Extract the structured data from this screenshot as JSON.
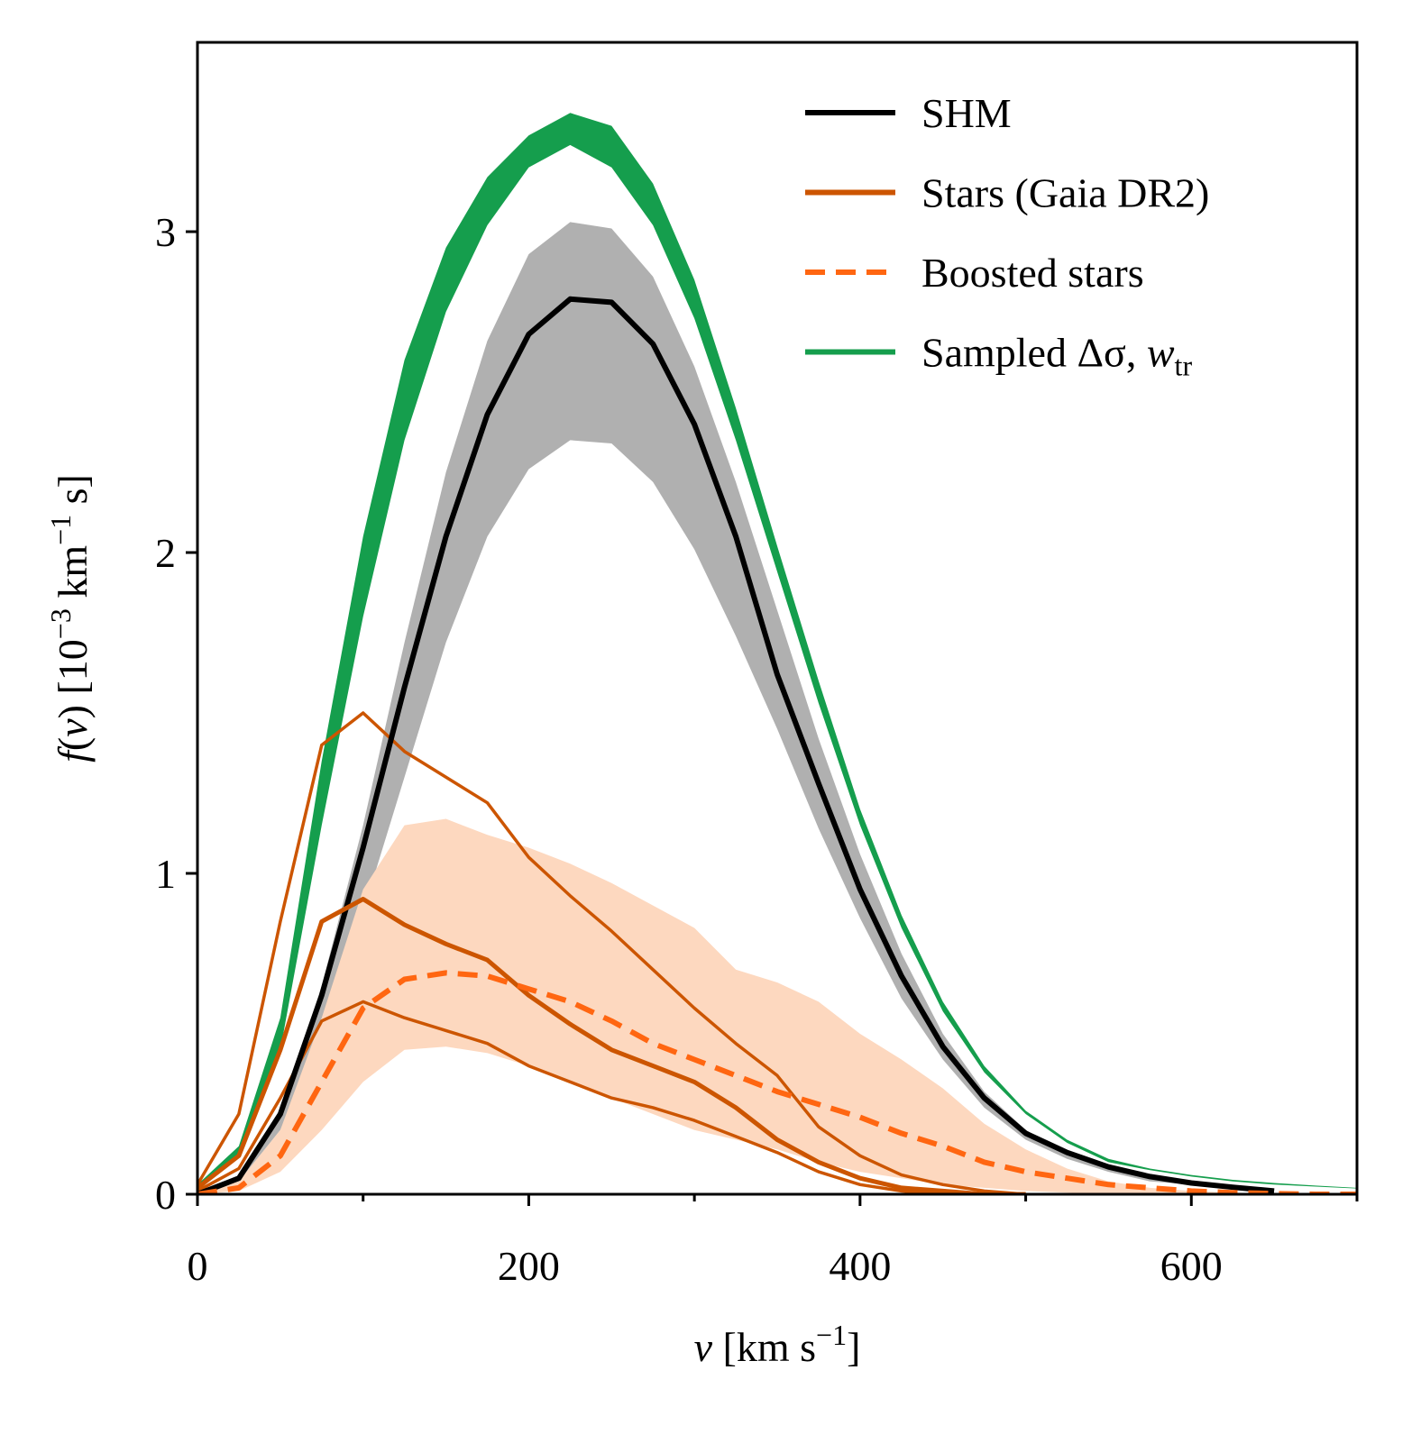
{
  "chart_data": {
    "type": "line",
    "xlabel": [
      {
        "text": "v",
        "italic": true
      },
      {
        "text": "  [km s"
      },
      {
        "text": "−1",
        "sup": true
      },
      {
        "text": "]"
      }
    ],
    "ylabel": [
      {
        "text": "f",
        "italic": true
      },
      {
        "text": "("
      },
      {
        "text": "v",
        "italic": true
      },
      {
        "text": ") [10"
      },
      {
        "text": "−3",
        "sup": true
      },
      {
        "text": " km"
      },
      {
        "text": "−1",
        "sup": true
      },
      {
        "text": " s]"
      }
    ],
    "xlim": [
      0,
      700
    ],
    "ylim": [
      0,
      3.59
    ],
    "xticks": [
      0,
      200,
      400,
      600
    ],
    "xminorticks": [
      100,
      300,
      500,
      700
    ],
    "yticks": [
      0,
      1,
      2,
      3
    ],
    "legend": "upper right",
    "x": [
      0,
      25,
      50,
      75,
      100,
      125,
      150,
      175,
      200,
      225,
      250,
      275,
      300,
      325,
      350,
      375,
      400,
      425,
      450,
      475,
      500,
      525,
      550,
      575,
      600,
      625,
      650,
      675,
      700
    ],
    "series": [
      {
        "name": "SHM",
        "color": "#000000",
        "values": [
          0,
          0.05,
          0.25,
          0.62,
          1.08,
          1.58,
          2.05,
          2.43,
          2.68,
          2.79,
          2.78,
          2.65,
          2.4,
          2.05,
          1.62,
          1.28,
          0.95,
          0.68,
          0.46,
          0.3,
          0.19,
          0.13,
          0.085,
          0.055,
          0.035,
          0.022,
          0.01,
          null,
          null
        ],
        "band": {
          "color": "#b0b0b0",
          "upper": [
            0,
            0.05,
            0.25,
            0.65,
            1.15,
            1.72,
            2.25,
            2.66,
            2.93,
            3.03,
            3.01,
            2.86,
            2.58,
            2.22,
            1.82,
            1.42,
            1.06,
            0.75,
            0.5,
            0.32,
            0.2,
            0.13,
            0.08,
            0.05,
            0.03,
            0.02,
            0.01,
            null,
            null
          ],
          "lower": [
            0,
            0.04,
            0.2,
            0.5,
            0.88,
            1.3,
            1.72,
            2.05,
            2.26,
            2.35,
            2.34,
            2.22,
            2.01,
            1.74,
            1.45,
            1.14,
            0.86,
            0.61,
            0.42,
            0.27,
            0.17,
            0.11,
            0.07,
            0.04,
            0.03,
            0.02,
            0.01,
            null,
            null
          ]
        }
      },
      {
        "name": "Stars (Gaia DR2)",
        "color": "#cc5500",
        "values": [
          0.02,
          0.12,
          0.45,
          0.85,
          0.92,
          0.84,
          0.78,
          0.73,
          0.62,
          0.53,
          0.45,
          0.4,
          0.35,
          0.27,
          0.17,
          0.1,
          0.05,
          0.02,
          0.01,
          0,
          0,
          null,
          null,
          null,
          null,
          null,
          null,
          null,
          null
        ],
        "bounds": {
          "upper": [
            0.03,
            0.25,
            0.85,
            1.4,
            1.5,
            1.38,
            1.3,
            1.22,
            1.05,
            0.93,
            0.82,
            0.7,
            0.58,
            0.47,
            0.37,
            0.21,
            0.12,
            0.06,
            0.03,
            0.01,
            0,
            null,
            null,
            null,
            null,
            null,
            null,
            null,
            null
          ],
          "lower": [
            0.01,
            0.08,
            0.3,
            0.54,
            0.6,
            0.55,
            0.51,
            0.47,
            0.4,
            0.35,
            0.3,
            0.27,
            0.23,
            0.18,
            0.13,
            0.07,
            0.03,
            0.01,
            0,
            0,
            0,
            null,
            null,
            null,
            null,
            null,
            null,
            null,
            null
          ]
        }
      },
      {
        "name": "Boosted stars",
        "color": "#ff6611",
        "dash": true,
        "values": [
          0,
          0.02,
          0.12,
          0.35,
          0.58,
          0.67,
          0.69,
          0.68,
          0.64,
          0.6,
          0.54,
          0.47,
          0.42,
          0.37,
          0.32,
          0.28,
          0.24,
          0.19,
          0.15,
          0.1,
          0.07,
          0.05,
          0.03,
          0.02,
          0.01,
          0.005,
          0.002,
          0,
          0
        ],
        "band": {
          "color": "#fdd8bf",
          "upper": [
            0,
            0.04,
            0.2,
            0.55,
            0.95,
            1.15,
            1.17,
            1.12,
            1.08,
            1.03,
            0.97,
            0.9,
            0.83,
            0.7,
            0.66,
            0.6,
            0.5,
            0.42,
            0.33,
            0.22,
            0.14,
            0.08,
            0.04,
            0.02,
            0.01,
            0.005,
            0.002,
            0,
            0
          ],
          "lower": [
            0,
            0.01,
            0.07,
            0.2,
            0.35,
            0.45,
            0.46,
            0.44,
            0.4,
            0.35,
            0.3,
            0.25,
            0.2,
            0.17,
            0.14,
            0.1,
            0.07,
            0.05,
            0.03,
            0.02,
            0.01,
            0.005,
            0,
            0,
            0,
            0,
            0,
            0,
            0
          ]
        }
      },
      {
        "name": "Sampled Δσ, ",
        "name_italic": "w",
        "name_subscript": "tr",
        "color": "#159e4d",
        "band": {
          "color": "#159e4d",
          "upper": [
            0.03,
            0.15,
            0.55,
            1.35,
            2.05,
            2.6,
            2.95,
            3.17,
            3.3,
            3.37,
            3.33,
            3.15,
            2.85,
            2.45,
            2.02,
            1.6,
            1.2,
            0.87,
            0.6,
            0.4,
            0.26,
            0.17,
            0.11,
            0.08,
            0.06,
            0.045,
            0.035,
            0.027,
            0.02
          ],
          "lower": [
            0.02,
            0.12,
            0.45,
            1.15,
            1.8,
            2.35,
            2.75,
            3.02,
            3.2,
            3.27,
            3.2,
            3.02,
            2.73,
            2.35,
            1.94,
            1.53,
            1.15,
            0.83,
            0.57,
            0.38,
            0.25,
            0.16,
            0.1,
            0.075,
            0.055,
            0.04,
            0.03,
            0.024,
            0.018
          ]
        }
      }
    ]
  }
}
